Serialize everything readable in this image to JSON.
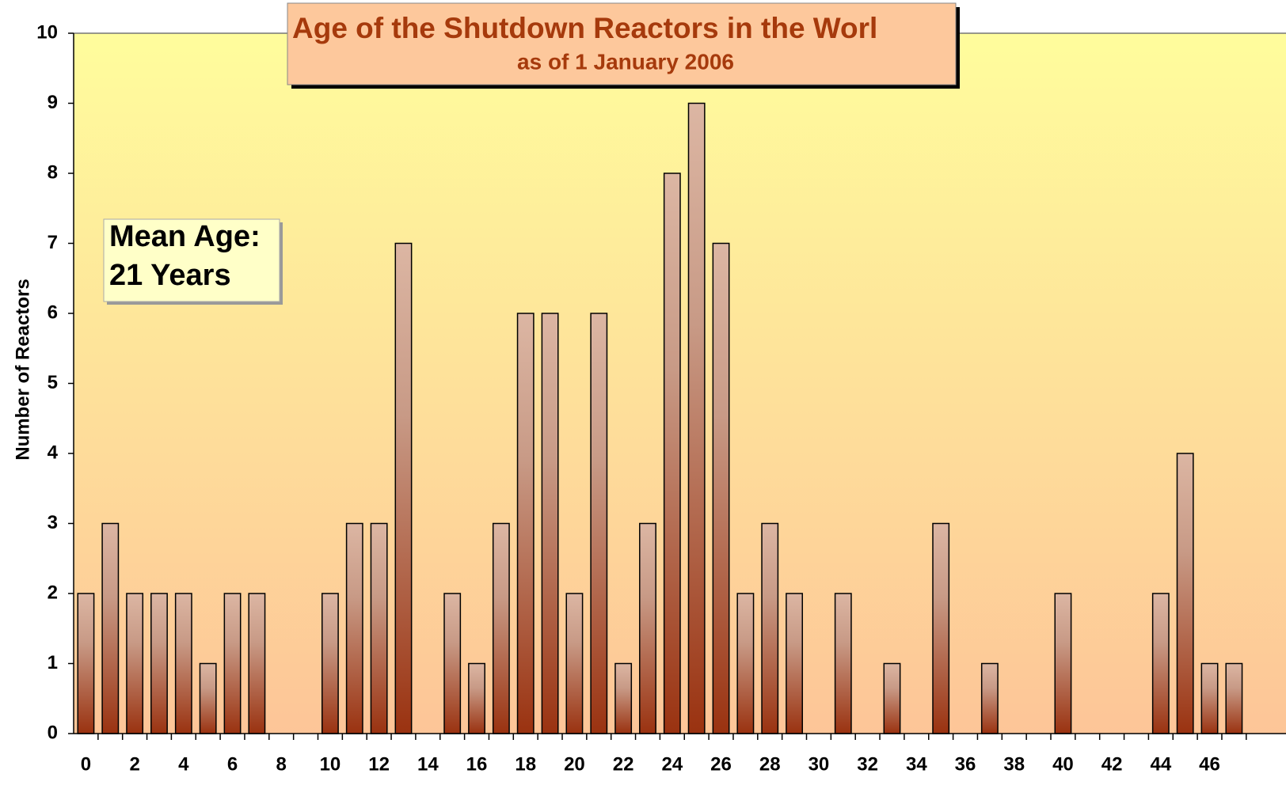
{
  "chart_data": {
    "type": "bar",
    "title": "Age of the Shutdown Reactors in the Worl",
    "subtitle": "as of 1 January 2006",
    "y_label": "Number of Reactors",
    "annotation": [
      "Mean Age:",
      "21 Years"
    ],
    "categories": [
      0,
      null,
      2,
      null,
      4,
      null,
      6,
      null,
      8,
      null,
      10,
      null,
      12,
      null,
      14,
      null,
      16,
      null,
      18,
      null,
      20,
      null,
      22,
      null,
      24,
      null,
      26,
      null,
      28,
      null,
      30,
      null,
      32,
      null,
      34,
      null,
      36,
      null,
      38,
      null,
      40,
      null,
      42,
      null,
      44,
      null,
      46,
      null
    ],
    "values": [
      2,
      3,
      2,
      2,
      2,
      1,
      2,
      2,
      0,
      0,
      2,
      3,
      3,
      7,
      0,
      2,
      1,
      3,
      6,
      6,
      2,
      6,
      1,
      3,
      8,
      9,
      7,
      2,
      3,
      2,
      0,
      2,
      0,
      1,
      0,
      3,
      0,
      1,
      0,
      0,
      2,
      0,
      0,
      0,
      2,
      4,
      1,
      1
    ],
    "color_top": "#dcb6a3",
    "color_bottom": "#9a3210",
    "ylim": [
      0,
      10
    ],
    "yticks": [
      0,
      1,
      2,
      3,
      4,
      5,
      6,
      7,
      8,
      9,
      10
    ]
  }
}
